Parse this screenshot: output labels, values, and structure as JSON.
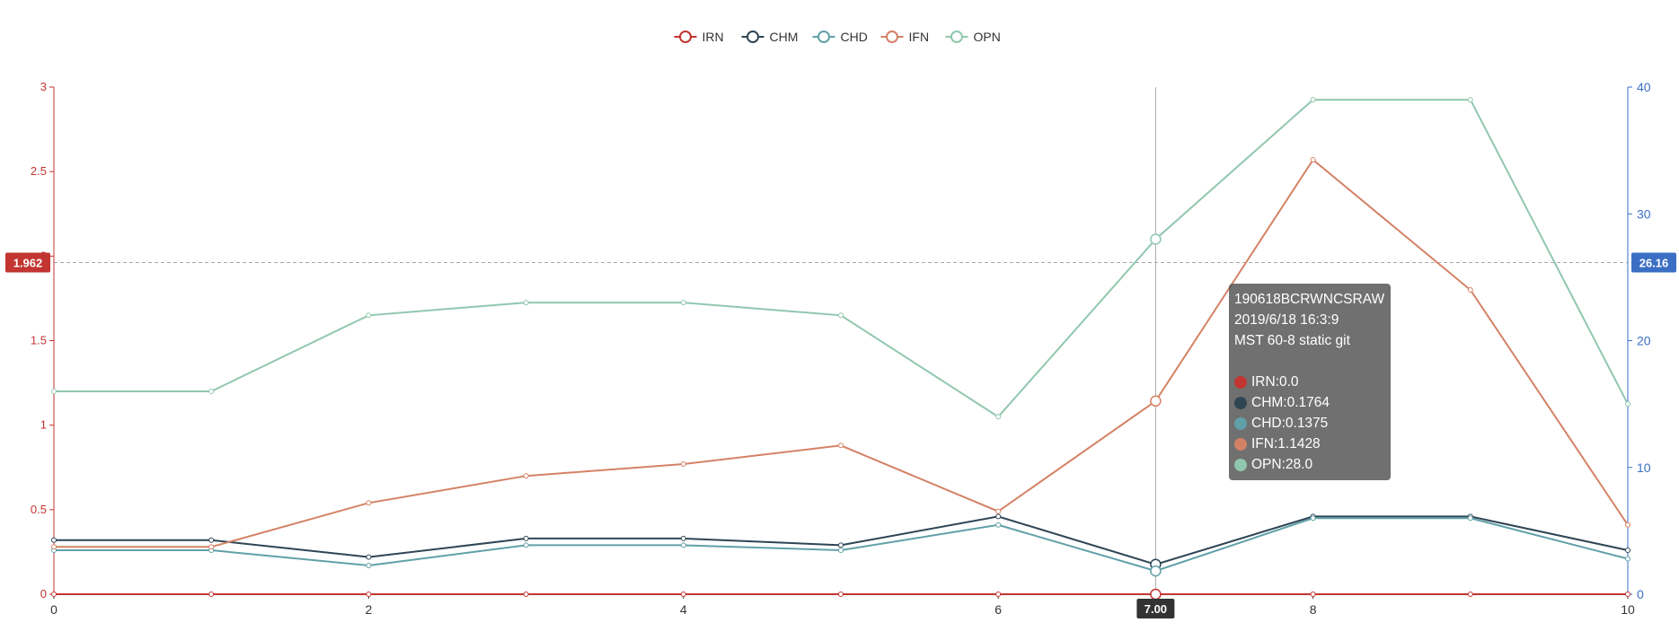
{
  "chart_data": {
    "type": "line",
    "x": [
      0,
      1,
      2,
      3,
      4,
      5,
      6,
      7,
      8,
      9,
      10
    ],
    "x_ticks": [
      "0",
      "2",
      "4",
      "6",
      "8",
      "10"
    ],
    "xlim": [
      0,
      10
    ],
    "y_left": {
      "ylim": [
        0,
        3
      ],
      "ticks": [
        "0",
        "0.5",
        "1",
        "1.5",
        "2",
        "2.5",
        "3"
      ],
      "color": "#c23531"
    },
    "y_right": {
      "ylim": [
        0,
        40
      ],
      "ticks": [
        "0",
        "10",
        "20",
        "30",
        "40"
      ],
      "color": "#3a6fc4"
    },
    "series": [
      {
        "name": "IRN",
        "axis": "left",
        "color": "#c23531",
        "values": [
          0,
          0,
          0,
          0,
          0,
          0,
          0,
          0,
          0,
          0,
          0
        ]
      },
      {
        "name": "CHM",
        "axis": "left",
        "color": "#2f4554",
        "values": [
          0.32,
          0.32,
          0.22,
          0.33,
          0.33,
          0.29,
          0.46,
          0.1764,
          0.46,
          0.46,
          0.26
        ]
      },
      {
        "name": "CHD",
        "axis": "left",
        "color": "#61a0a8",
        "values": [
          0.26,
          0.26,
          0.17,
          0.29,
          0.29,
          0.26,
          0.41,
          0.1375,
          0.45,
          0.45,
          0.21
        ]
      },
      {
        "name": "IFN",
        "axis": "left",
        "color": "#d48265",
        "values": [
          0.28,
          0.28,
          0.54,
          0.7,
          0.77,
          0.88,
          0.49,
          1.1428,
          2.57,
          1.8,
          0.41
        ]
      },
      {
        "name": "OPN",
        "axis": "right",
        "color": "#91c7ae",
        "values": [
          16.0,
          16.0,
          22.0,
          23.0,
          23.0,
          22.0,
          14.0,
          28.0,
          39.0,
          39.0,
          15.0
        ]
      }
    ],
    "grid": false,
    "legend_position": "top-center",
    "axis_pointer": {
      "x_label": "7.00",
      "y_left_label": "1.962",
      "y_right_label": "26.16",
      "label_left_color": "#c23531",
      "label_right_color": "#3a6fc4",
      "label_x_color": "#333333"
    }
  },
  "tooltip": {
    "title_lines": [
      "190618BCRWNCSRAW",
      "2019/6/18 16:3:9",
      "MST 60-8 static git"
    ],
    "rows": [
      {
        "label": "IRN:0.0",
        "color": "#c23531"
      },
      {
        "label": "CHM:0.1764",
        "color": "#2f4554"
      },
      {
        "label": "CHD:0.1375",
        "color": "#61a0a8"
      },
      {
        "label": "IFN:1.1428",
        "color": "#d48265"
      },
      {
        "label": "OPN:28.0",
        "color": "#91c7ae"
      }
    ]
  }
}
